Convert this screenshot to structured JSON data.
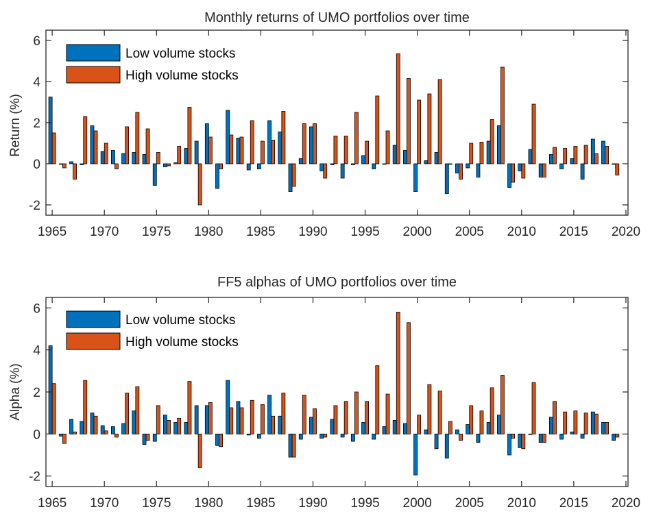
{
  "colors": {
    "low": "#0072BD",
    "high": "#D95319",
    "axis": "#262626",
    "bar_edge": "#000000"
  },
  "chart_data": [
    {
      "type": "bar",
      "title": "Monthly returns of UMO portfolios over time",
      "xlabel": "",
      "ylabel": "Return (%)",
      "xlim": [
        1964.4,
        2020.2
      ],
      "ylim": [
        -2.5,
        6.5
      ],
      "xticks": [
        1965,
        1970,
        1975,
        1980,
        1985,
        1990,
        1995,
        2000,
        2005,
        2010,
        2015,
        2020
      ],
      "yticks": [
        -2,
        0,
        2,
        4,
        6
      ],
      "legend_position": "top-left",
      "x": [
        1965,
        1966,
        1967,
        1968,
        1969,
        1970,
        1971,
        1972,
        1973,
        1974,
        1975,
        1976,
        1977,
        1978,
        1979,
        1980,
        1981,
        1982,
        1983,
        1984,
        1985,
        1986,
        1987,
        1988,
        1989,
        1990,
        1991,
        1992,
        1993,
        1994,
        1995,
        1996,
        1997,
        1998,
        1999,
        2000,
        2001,
        2002,
        2003,
        2004,
        2005,
        2006,
        2007,
        2008,
        2009,
        2010,
        2011,
        2012,
        2013,
        2014,
        2015,
        2016,
        2017,
        2018,
        2019
      ],
      "series": [
        {
          "name": "Low volume stocks",
          "values": [
            3.25,
            0.0,
            0.1,
            -0.05,
            1.85,
            0.6,
            0.65,
            0.5,
            0.55,
            0.45,
            -1.05,
            -0.15,
            0.05,
            0.75,
            1.1,
            1.95,
            -1.2,
            2.6,
            1.25,
            -0.3,
            -0.25,
            2.1,
            1.55,
            -1.35,
            0.25,
            1.8,
            -0.35,
            -0.05,
            -0.7,
            -0.05,
            0.4,
            -0.25,
            0.0,
            0.9,
            0.65,
            -1.35,
            0.15,
            0.55,
            -1.45,
            -0.45,
            -0.2,
            -0.65,
            1.1,
            1.85,
            -1.15,
            -0.35,
            0.7,
            -0.65,
            0.45,
            -0.25,
            0.25,
            -0.75,
            1.2,
            1.1,
            0.0
          ]
        },
        {
          "name": "High volume stocks",
          "values": [
            1.5,
            -0.2,
            -0.75,
            2.3,
            1.6,
            1.0,
            -0.25,
            1.8,
            2.5,
            1.7,
            0.55,
            -0.1,
            0.85,
            2.75,
            -2.0,
            1.3,
            -0.25,
            1.4,
            1.3,
            2.1,
            1.1,
            1.15,
            2.55,
            -1.1,
            1.95,
            1.95,
            -0.7,
            1.35,
            1.35,
            2.5,
            1.1,
            3.3,
            1.6,
            5.35,
            4.15,
            3.1,
            3.4,
            4.1,
            0.0,
            -0.75,
            1.0,
            1.05,
            2.15,
            4.7,
            -0.9,
            -0.7,
            2.9,
            -0.65,
            0.8,
            0.75,
            0.85,
            0.9,
            0.5,
            0.85,
            -0.55
          ]
        }
      ]
    },
    {
      "type": "bar",
      "title": "FF5 alphas of UMO portfolios over time",
      "xlabel": "",
      "ylabel": "Alpha (%)",
      "xlim": [
        1964.4,
        2020.2
      ],
      "ylim": [
        -2.5,
        6.5
      ],
      "xticks": [
        1965,
        1970,
        1975,
        1980,
        1985,
        1990,
        1995,
        2000,
        2005,
        2010,
        2015,
        2020
      ],
      "yticks": [
        -2,
        0,
        2,
        4,
        6
      ],
      "legend_position": "top-left",
      "x": [
        1965,
        1966,
        1967,
        1968,
        1969,
        1970,
        1971,
        1972,
        1973,
        1974,
        1975,
        1976,
        1977,
        1978,
        1979,
        1980,
        1981,
        1982,
        1983,
        1984,
        1985,
        1986,
        1987,
        1988,
        1989,
        1990,
        1991,
        1992,
        1993,
        1994,
        1995,
        1996,
        1997,
        1998,
        1999,
        2000,
        2001,
        2002,
        2003,
        2004,
        2005,
        2006,
        2007,
        2008,
        2009,
        2010,
        2011,
        2012,
        2013,
        2014,
        2015,
        2016,
        2017,
        2018,
        2019
      ],
      "series": [
        {
          "name": "Low volume stocks",
          "values": [
            4.2,
            -0.1,
            0.7,
            0.6,
            1.0,
            0.4,
            0.35,
            0.5,
            1.1,
            -0.5,
            -0.35,
            0.9,
            0.55,
            0.55,
            1.35,
            1.35,
            -0.55,
            2.55,
            1.55,
            -0.05,
            -0.2,
            1.85,
            0.85,
            -1.1,
            -0.25,
            0.8,
            -0.2,
            0.7,
            -0.15,
            -0.35,
            0.55,
            -0.25,
            0.35,
            0.65,
            0.5,
            -1.95,
            0.2,
            -0.7,
            -1.15,
            0.2,
            0.45,
            -0.4,
            0.55,
            0.9,
            -1.0,
            -0.65,
            0.0,
            -0.4,
            0.8,
            -0.25,
            0.1,
            -0.2,
            1.05,
            0.55,
            -0.3
          ]
        },
        {
          "name": "High volume stocks",
          "values": [
            2.4,
            -0.45,
            0.1,
            2.55,
            0.85,
            0.15,
            -0.15,
            1.95,
            2.25,
            -0.3,
            1.35,
            0.65,
            0.75,
            2.5,
            -1.6,
            1.5,
            -0.6,
            1.25,
            1.25,
            1.6,
            1.4,
            0.85,
            1.95,
            -1.1,
            1.85,
            1.2,
            -0.15,
            1.35,
            1.55,
            2.0,
            1.55,
            3.25,
            1.9,
            5.8,
            5.3,
            0.9,
            2.35,
            2.05,
            0.6,
            -0.3,
            1.35,
            1.1,
            2.2,
            2.8,
            -0.2,
            -0.7,
            2.45,
            -0.4,
            1.55,
            1.05,
            1.1,
            1.0,
            0.95,
            0.55,
            -0.15
          ]
        }
      ]
    }
  ]
}
